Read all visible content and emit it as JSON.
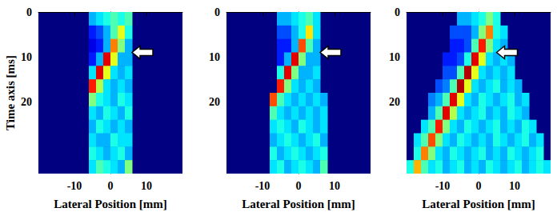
{
  "chart_data": [
    {
      "type": "heatmap",
      "y_label": "Time axis [ms]",
      "x_label": "Lateral Position [mm]",
      "xlim": [
        -20,
        20
      ],
      "xticks": [
        -10,
        0,
        10
      ],
      "ylim": [
        0,
        36
      ],
      "yticks": [
        0,
        10,
        20
      ],
      "color_range": [
        0,
        1
      ],
      "arrows": [
        {
          "x": 6,
          "y": 9
        }
      ],
      "cells": {
        "x_edges": [
          -20,
          -18,
          -16,
          -14,
          -12,
          -10,
          -8,
          -6,
          -4,
          -2,
          0,
          2,
          4,
          6,
          8,
          10,
          12,
          14,
          16,
          18,
          20
        ],
        "y_edges": [
          0,
          3,
          6,
          9,
          12,
          15,
          18,
          21,
          24,
          27,
          30,
          33,
          36
        ],
        "values": [
          [
            null,
            null,
            null,
            null,
            null,
            null,
            null,
            0.3,
            0.35,
            0.4,
            0.45,
            0.4,
            0.45,
            null,
            null,
            null,
            null,
            null,
            null,
            null
          ],
          [
            null,
            null,
            null,
            null,
            null,
            null,
            null,
            0.15,
            0.2,
            0.3,
            0.45,
            0.6,
            0.4,
            null,
            null,
            null,
            null,
            null,
            null,
            null
          ],
          [
            null,
            null,
            null,
            null,
            null,
            null,
            null,
            0.1,
            0.15,
            0.3,
            0.75,
            0.5,
            0.3,
            null,
            null,
            null,
            null,
            null,
            null,
            null
          ],
          [
            null,
            null,
            null,
            null,
            null,
            null,
            null,
            0.15,
            0.3,
            0.9,
            0.6,
            0.3,
            0.3,
            null,
            null,
            null,
            null,
            null,
            null,
            null
          ],
          [
            null,
            null,
            null,
            null,
            null,
            null,
            null,
            0.35,
            0.9,
            0.6,
            0.35,
            0.3,
            0.35,
            null,
            null,
            null,
            null,
            null,
            null,
            null
          ],
          [
            null,
            null,
            null,
            null,
            null,
            null,
            null,
            0.85,
            0.55,
            0.35,
            0.3,
            0.35,
            0.3,
            null,
            null,
            null,
            null,
            null,
            null,
            null
          ],
          [
            null,
            null,
            null,
            null,
            null,
            null,
            null,
            0.5,
            0.4,
            0.35,
            0.3,
            0.4,
            0.35,
            null,
            null,
            null,
            null,
            null,
            null,
            null
          ],
          [
            null,
            null,
            null,
            null,
            null,
            null,
            null,
            0.35,
            0.3,
            0.4,
            0.35,
            0.3,
            0.4,
            null,
            null,
            null,
            null,
            null,
            null,
            null
          ],
          [
            null,
            null,
            null,
            null,
            null,
            null,
            null,
            0.3,
            0.4,
            0.35,
            0.3,
            0.35,
            0.3,
            null,
            null,
            null,
            null,
            null,
            null,
            null
          ],
          [
            null,
            null,
            null,
            null,
            null,
            null,
            null,
            0.35,
            0.3,
            0.3,
            0.4,
            0.35,
            0.35,
            null,
            null,
            null,
            null,
            null,
            null,
            null
          ],
          [
            null,
            null,
            null,
            null,
            null,
            null,
            null,
            0.4,
            0.35,
            0.3,
            0.35,
            0.4,
            0.3,
            null,
            null,
            null,
            null,
            null,
            null,
            null
          ],
          [
            null,
            null,
            null,
            null,
            null,
            null,
            null,
            0.35,
            0.45,
            0.4,
            0.35,
            0.3,
            0.5,
            null,
            null,
            null,
            null,
            null,
            null,
            null
          ]
        ]
      }
    },
    {
      "type": "heatmap",
      "x_label": "Lateral Position [mm]",
      "xlim": [
        -20,
        20
      ],
      "xticks": [
        -10,
        0,
        10
      ],
      "ylim": [
        0,
        36
      ],
      "yticks": [
        0,
        10,
        20
      ],
      "color_range": [
        0,
        1
      ],
      "arrows": [
        {
          "x": 6,
          "y": 9
        }
      ],
      "cells": {
        "x_edges": [
          -20,
          -18,
          -16,
          -14,
          -12,
          -10,
          -8,
          -6,
          -4,
          -2,
          0,
          2,
          4,
          6,
          8,
          10,
          12,
          14,
          16,
          18,
          20
        ],
        "y_edges": [
          0,
          3,
          6,
          9,
          12,
          15,
          18,
          21,
          24,
          27,
          30,
          33,
          36
        ],
        "values": [
          [
            null,
            null,
            null,
            null,
            null,
            null,
            null,
            0.3,
            0.3,
            0.35,
            0.4,
            0.45,
            0.35,
            null,
            null,
            null,
            null,
            null,
            null,
            null
          ],
          [
            null,
            null,
            null,
            null,
            null,
            null,
            null,
            0.2,
            0.2,
            0.3,
            0.4,
            0.65,
            0.35,
            null,
            null,
            null,
            null,
            null,
            null,
            null
          ],
          [
            null,
            null,
            null,
            null,
            null,
            null,
            null,
            0.15,
            0.15,
            0.3,
            0.8,
            0.45,
            0.3,
            null,
            null,
            null,
            null,
            null,
            null,
            null
          ],
          [
            null,
            null,
            null,
            null,
            null,
            null,
            null,
            0.15,
            0.3,
            0.9,
            0.5,
            0.3,
            0.3,
            null,
            null,
            null,
            null,
            null,
            null,
            null
          ],
          [
            null,
            null,
            null,
            null,
            null,
            null,
            null,
            0.4,
            0.9,
            0.5,
            0.3,
            0.3,
            0.35,
            null,
            null,
            null,
            null,
            null,
            null,
            null
          ],
          [
            null,
            null,
            null,
            null,
            null,
            null,
            null,
            0.85,
            0.5,
            0.35,
            0.3,
            0.35,
            0.3,
            null,
            null,
            null,
            null,
            null,
            null,
            null
          ],
          [
            null,
            null,
            null,
            null,
            null,
            null,
            0.8,
            0.45,
            0.35,
            0.3,
            0.35,
            0.3,
            0.35,
            0.3,
            null,
            null,
            null,
            null,
            null,
            null
          ],
          [
            null,
            null,
            null,
            null,
            null,
            null,
            0.45,
            0.35,
            0.3,
            0.35,
            0.3,
            0.35,
            0.3,
            0.35,
            null,
            null,
            null,
            null,
            null,
            null
          ],
          [
            null,
            null,
            null,
            null,
            null,
            null,
            0.35,
            0.4,
            0.35,
            0.3,
            0.4,
            0.35,
            0.3,
            0.35,
            null,
            null,
            null,
            null,
            null,
            null
          ],
          [
            null,
            null,
            null,
            null,
            null,
            null,
            0.3,
            0.35,
            0.4,
            0.35,
            0.3,
            0.35,
            0.4,
            0.3,
            null,
            null,
            null,
            null,
            null,
            null
          ],
          [
            null,
            null,
            null,
            null,
            null,
            null,
            0.4,
            0.3,
            0.35,
            0.4,
            0.35,
            0.3,
            0.35,
            0.4,
            null,
            null,
            null,
            null,
            null,
            null
          ],
          [
            null,
            null,
            null,
            null,
            null,
            null,
            0.35,
            0.4,
            0.3,
            0.35,
            0.4,
            0.35,
            0.3,
            0.45,
            null,
            null,
            null,
            null,
            null,
            null
          ]
        ]
      }
    },
    {
      "type": "heatmap",
      "x_label": "Lateral Position [mm]",
      "xlim": [
        -20,
        20
      ],
      "xticks": [
        -10,
        0,
        10
      ],
      "ylim": [
        0,
        36
      ],
      "yticks": [
        0,
        10,
        20
      ],
      "color_range": [
        0,
        1
      ],
      "arrows": [
        {
          "x": 5,
          "y": 9
        }
      ],
      "cells": {
        "x_edges": [
          -20,
          -18,
          -16,
          -14,
          -12,
          -10,
          -8,
          -6,
          -4,
          -2,
          0,
          2,
          4,
          6,
          8,
          10,
          12,
          14,
          16,
          18,
          20
        ],
        "y_edges": [
          0,
          3,
          6,
          9,
          12,
          15,
          18,
          21,
          24,
          27,
          30,
          33,
          36
        ],
        "values": [
          [
            null,
            null,
            null,
            null,
            null,
            null,
            null,
            0.3,
            0.3,
            0.35,
            0.4,
            0.5,
            0.4,
            null,
            null,
            null,
            null,
            null,
            null,
            null
          ],
          [
            null,
            null,
            null,
            null,
            null,
            null,
            0.2,
            0.2,
            0.2,
            0.3,
            0.5,
            0.75,
            0.4,
            0.35,
            null,
            null,
            null,
            null,
            null,
            null
          ],
          [
            null,
            null,
            null,
            null,
            null,
            null,
            0.15,
            0.15,
            0.2,
            0.45,
            0.85,
            0.5,
            0.35,
            0.3,
            null,
            null,
            null,
            null,
            null,
            null
          ],
          [
            null,
            null,
            null,
            null,
            null,
            0.15,
            0.15,
            0.2,
            0.4,
            0.9,
            0.6,
            0.35,
            0.3,
            0.35,
            0.3,
            null,
            null,
            null,
            null,
            null
          ],
          [
            null,
            null,
            null,
            null,
            null,
            0.2,
            0.2,
            0.45,
            0.95,
            0.6,
            0.35,
            0.3,
            0.35,
            0.3,
            0.35,
            null,
            null,
            null,
            null,
            null
          ],
          [
            null,
            null,
            null,
            null,
            0.2,
            0.25,
            0.45,
            0.95,
            0.6,
            0.35,
            0.3,
            0.35,
            0.4,
            0.3,
            0.35,
            0.3,
            null,
            null,
            null,
            null
          ],
          [
            null,
            null,
            null,
            0.25,
            0.3,
            0.45,
            0.9,
            0.6,
            0.35,
            0.3,
            0.4,
            0.35,
            0.3,
            0.35,
            0.4,
            0.3,
            0.35,
            null,
            null,
            null
          ],
          [
            null,
            null,
            null,
            0.3,
            0.45,
            0.9,
            0.55,
            0.35,
            0.3,
            0.35,
            0.4,
            0.3,
            0.35,
            0.3,
            0.4,
            0.35,
            0.3,
            null,
            null,
            null
          ],
          [
            null,
            null,
            0.35,
            0.45,
            0.85,
            0.5,
            0.35,
            0.3,
            0.4,
            0.35,
            0.3,
            0.35,
            0.4,
            0.3,
            0.35,
            0.3,
            0.4,
            0.35,
            null,
            null
          ],
          [
            null,
            0.35,
            0.45,
            0.8,
            0.5,
            0.35,
            0.3,
            0.4,
            0.35,
            0.3,
            0.35,
            0.3,
            0.4,
            0.35,
            0.3,
            0.35,
            0.4,
            0.3,
            0.35,
            null
          ],
          [
            null,
            0.4,
            0.75,
            0.5,
            0.35,
            0.3,
            0.4,
            0.35,
            0.3,
            0.35,
            0.4,
            0.3,
            0.35,
            0.3,
            0.4,
            0.35,
            0.3,
            0.35,
            0.4,
            null
          ],
          [
            0.4,
            0.7,
            0.45,
            0.35,
            0.4,
            0.3,
            0.35,
            0.4,
            0.3,
            0.35,
            0.3,
            0.4,
            0.35,
            0.3,
            0.35,
            0.4,
            0.3,
            0.35,
            0.4,
            0.35
          ]
        ]
      }
    }
  ]
}
